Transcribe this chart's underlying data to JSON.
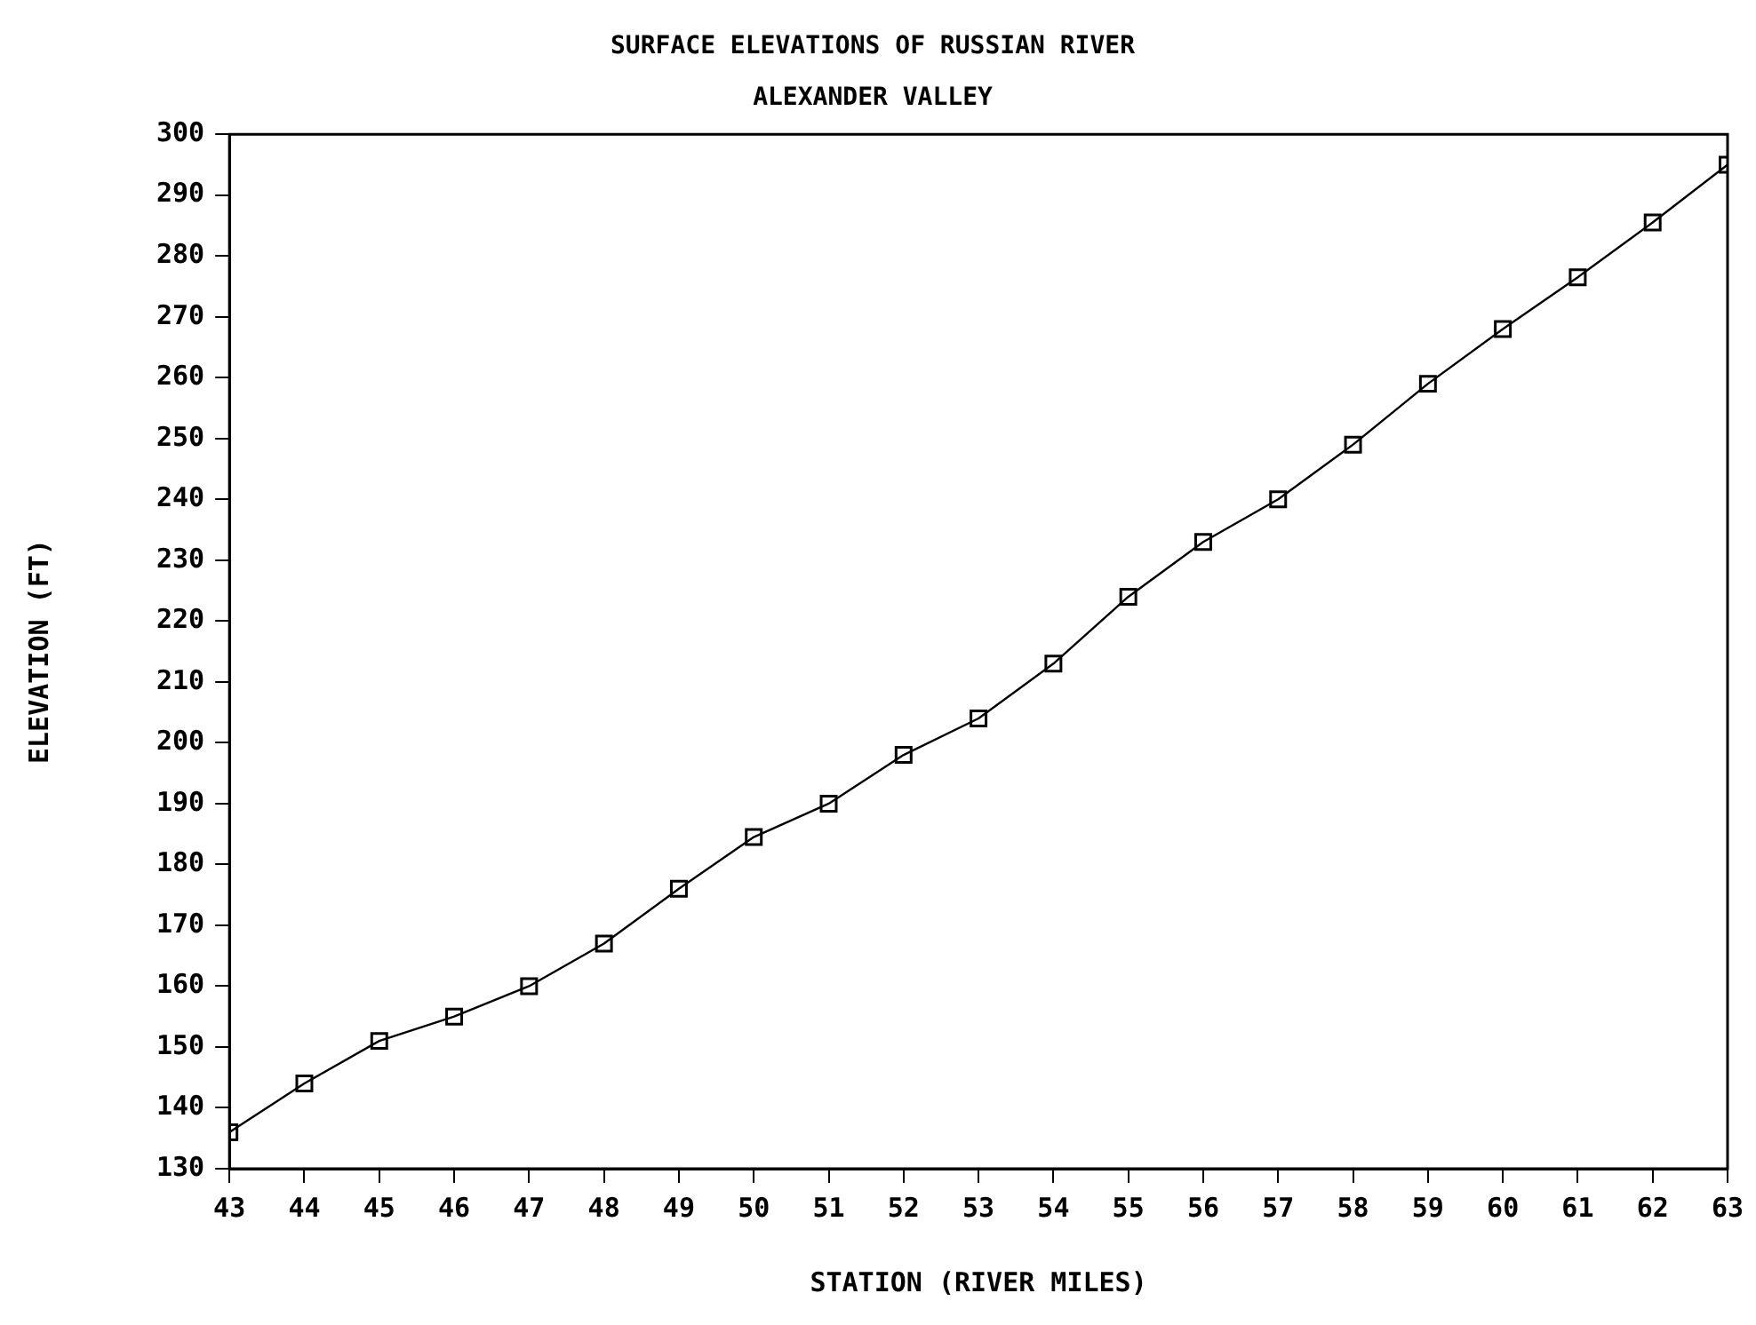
{
  "chart_data": {
    "type": "line",
    "title": "SURFACE ELEVATIONS OF RUSSIAN RIVER",
    "subtitle": "ALEXANDER VALLEY",
    "xlabel": "STATION (RIVER MILES)",
    "ylabel": "ELEVATION (FT)",
    "x": [
      43,
      44,
      45,
      46,
      47,
      48,
      49,
      50,
      51,
      52,
      53,
      54,
      55,
      56,
      57,
      58,
      59,
      60,
      61,
      62,
      63
    ],
    "series": [
      {
        "color": "#000000",
        "values": [
          136,
          144,
          151,
          155,
          160,
          167,
          176,
          184.5,
          190,
          198,
          204,
          213,
          224,
          233,
          240,
          249,
          259,
          268,
          276.5,
          285.5,
          295
        ]
      }
    ],
    "xlim": [
      43,
      63
    ],
    "xticks": [
      43,
      44,
      45,
      46,
      47,
      48,
      49,
      50,
      51,
      52,
      53,
      54,
      55,
      56,
      57,
      58,
      59,
      60,
      61,
      62,
      63
    ],
    "ylim": [
      130,
      300
    ],
    "yticks": [
      130,
      140,
      150,
      160,
      170,
      180,
      190,
      200,
      210,
      220,
      230,
      240,
      250,
      260,
      270,
      280,
      290,
      300
    ],
    "grid": false,
    "legend": false,
    "marker": "square",
    "line_style": "solid"
  }
}
